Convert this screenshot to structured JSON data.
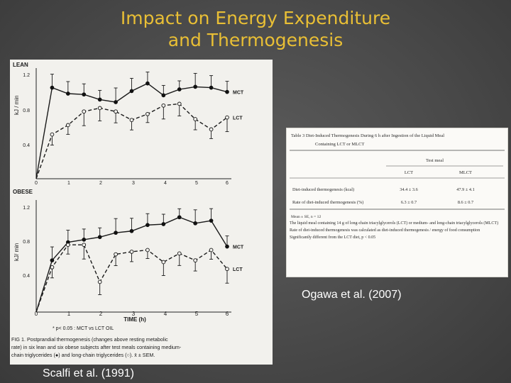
{
  "slide": {
    "title_line1": "Impact on Energy Expenditure",
    "title_line2": "and Thermogenesis",
    "caption_left": "Scalfi et al. (1991)",
    "caption_right": "Ogawa et al. (2007)",
    "colors": {
      "title": "#e9bf35",
      "caption": "#ffffff",
      "background": "#4a4a4a"
    }
  },
  "figure": {
    "panels": [
      {
        "label": "LEAN",
        "ylabel": "kJ / min",
        "yticks": [
          "1.2",
          "0.8",
          "0.4"
        ],
        "series": [
          {
            "name": "MCT",
            "style": "solid"
          },
          {
            "name": "LCT",
            "style": "dashed"
          }
        ]
      },
      {
        "label": "OBESE",
        "ylabel": "kJ/ min",
        "yticks": [
          "1.2",
          "0.8",
          "0.4"
        ],
        "series": [
          {
            "name": "MCT",
            "style": "solid"
          },
          {
            "name": "LCT",
            "style": "dashed"
          }
        ]
      }
    ],
    "xticks": [
      "0",
      "1",
      "2",
      "3",
      "4",
      "5",
      "6"
    ],
    "xlabel": "TIME (h)",
    "legend": "* p< 0.05 : MCT vs LCT OIL",
    "caption_lines": [
      "FIG 1. Postprandial thermogenesis (changes above resting metabolic",
      "rate) in six lean and six obese subjects after test meals containing medium-",
      "chain triglycerides (●) and long-chain triglycerides (○). x̄ ± SEM."
    ]
  },
  "table": {
    "title_line1": "Table 3   Diet-Induced Thermogenesis During 6 h after Ingestion of the Liquid Meal",
    "title_line2": "Containing LCT or MLCT",
    "group_header": "Test meal",
    "columns": [
      "LCT",
      "MLCT"
    ],
    "rows": [
      {
        "label": "Diet-induced thermogenesis (kcal)",
        "values": [
          "34.4 ± 3.6",
          "47.9 ± 4.1"
        ]
      },
      {
        "label": "Rate of diet-induced thermogenesis (%)",
        "values": [
          "6.3 ± 0.7",
          "8.6 ± 0.7"
        ]
      }
    ],
    "footnotes": [
      "Mean ± SE, n = 12",
      "The liquid meal containing 14 g of long-chain triacylglycerols (LCT) or medium- and long-chain triacylglycerols (MLCT)",
      "Rate of diet-induced thermogenesis was calculated as diet-induced thermogenesis / energy of food consumption",
      "Significantly different from the LCT diet, p < 0.05"
    ]
  },
  "chart_data": [
    {
      "type": "line",
      "title": "LEAN",
      "xlabel": "TIME (h)",
      "ylabel": "kJ / min",
      "ylim": [
        0,
        1.3
      ],
      "xlim": [
        0,
        6
      ],
      "series": [
        {
          "name": "MCT",
          "x": [
            0,
            0.5,
            1,
            1.5,
            2,
            2.5,
            3,
            3.5,
            4,
            4.5,
            5,
            5.5,
            6
          ],
          "y": [
            0,
            1.07,
            1.0,
            0.99,
            0.93,
            0.9,
            1.03,
            1.12,
            0.98,
            1.05,
            1.08,
            1.07,
            1.02
          ]
        },
        {
          "name": "LCT",
          "x": [
            0,
            0.5,
            1,
            1.5,
            2,
            2.5,
            3,
            3.5,
            4,
            4.5,
            5,
            5.5,
            6
          ],
          "y": [
            0,
            0.52,
            0.63,
            0.79,
            0.83,
            0.79,
            0.69,
            0.76,
            0.86,
            0.88,
            0.7,
            0.58,
            0.72
          ]
        }
      ]
    },
    {
      "type": "line",
      "title": "OBESE",
      "xlabel": "TIME (h)",
      "ylabel": "kJ/ min",
      "ylim": [
        0,
        1.3
      ],
      "xlim": [
        0,
        6
      ],
      "series": [
        {
          "name": "MCT",
          "x": [
            0,
            0.5,
            1,
            1.5,
            2,
            2.5,
            3,
            3.5,
            4,
            4.5,
            5,
            5.5,
            6
          ],
          "y": [
            0,
            0.6,
            0.81,
            0.84,
            0.87,
            0.92,
            0.94,
            1.01,
            1.02,
            1.1,
            1.03,
            1.06,
            0.76
          ]
        },
        {
          "name": "LCT",
          "x": [
            0,
            0.5,
            1,
            1.5,
            2,
            2.5,
            3,
            3.5,
            4,
            4.5,
            5,
            5.5,
            6
          ],
          "y": [
            0,
            0.52,
            0.78,
            0.78,
            0.35,
            0.67,
            0.7,
            0.72,
            0.58,
            0.68,
            0.6,
            0.72,
            0.5
          ]
        }
      ]
    }
  ]
}
